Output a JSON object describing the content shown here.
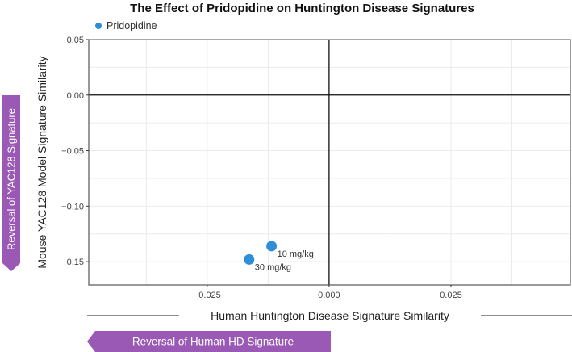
{
  "chart_data": {
    "type": "scatter",
    "title": "The Effect of Pridopidine on Huntington Disease Signatures",
    "xlabel": "Human Huntington Disease Signature Similarity",
    "ylabel": "Mouse YAC128 Model Signature Similarity",
    "xlim": [
      -0.0493,
      0.0495
    ],
    "ylim": [
      -0.171,
      0.05
    ],
    "x_ticks": [
      -0.025,
      0.0,
      0.025
    ],
    "x_tick_labels": [
      "−0.025",
      "0.000",
      "0.025"
    ],
    "y_ticks": [
      0.05,
      0.0,
      -0.05,
      -0.1,
      -0.15
    ],
    "y_tick_labels": [
      "0.05",
      "0.00",
      "−0.05",
      "−0.10",
      "−0.15"
    ],
    "grid": true,
    "legend_position": "top-left",
    "series": [
      {
        "name": "Pridopidine",
        "color": "#2E8FD8",
        "points": [
          {
            "label": "10 mg/kg",
            "x": -0.0118,
            "y": -0.136
          },
          {
            "label": "30 mg/kg",
            "x": -0.0164,
            "y": -0.148
          }
        ]
      }
    ],
    "annotations": [
      {
        "text": "Reversal of YAC128 Signature",
        "orientation": "vertical",
        "direction": "down",
        "color": "#9B59B6"
      },
      {
        "text": "Reversal of Human HD Signature",
        "orientation": "horizontal",
        "direction": "left",
        "color": "#9B59B6"
      }
    ]
  },
  "legend": {
    "label": "Pridopidine"
  },
  "colors": {
    "point": "#2E8FD8",
    "banner": "#9B59B6"
  }
}
